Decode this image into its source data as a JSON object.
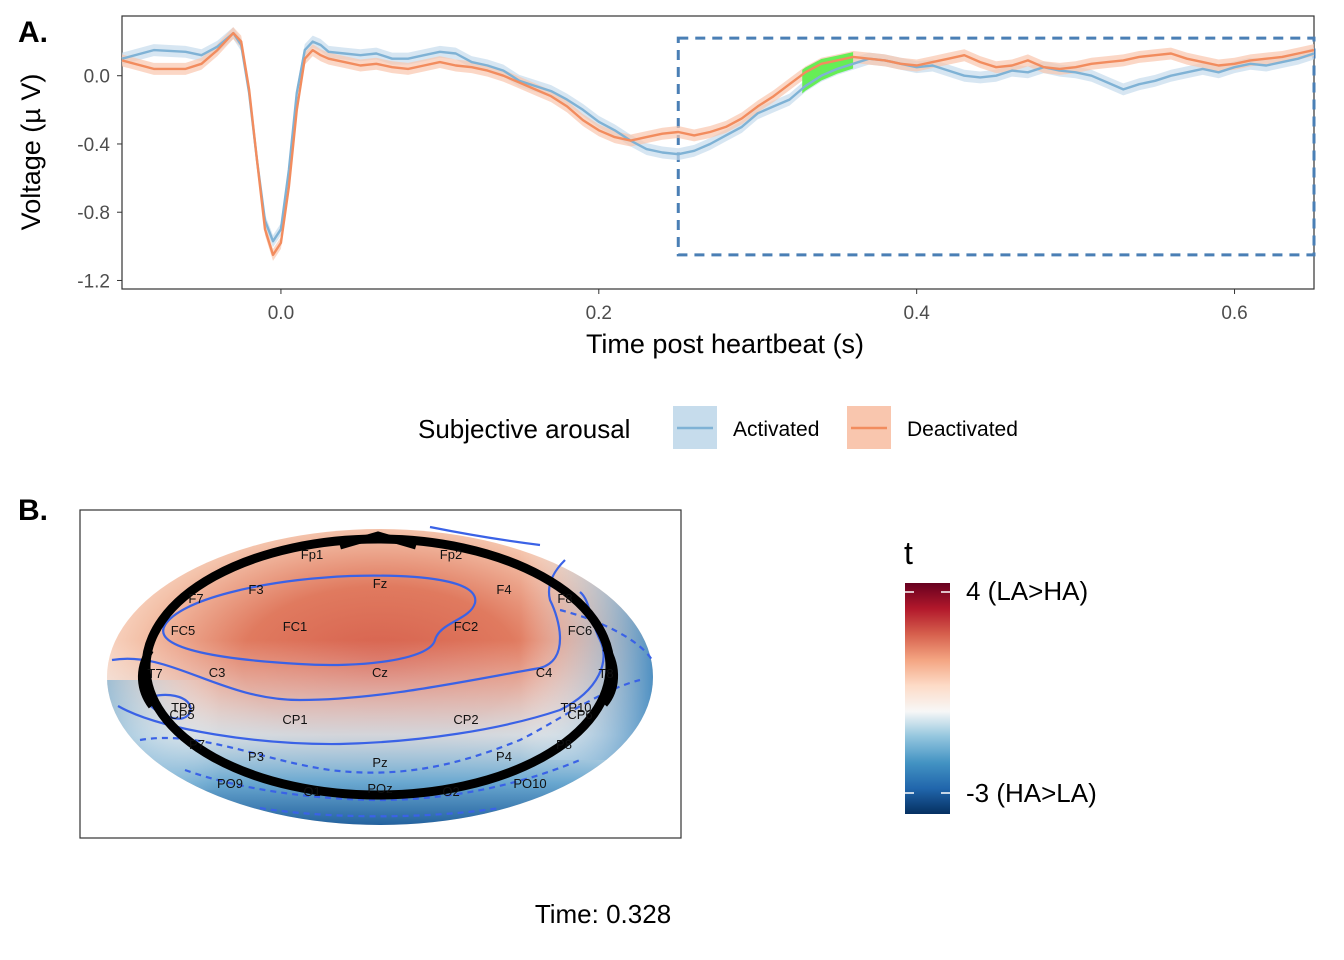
{
  "panel_a": {
    "label": "A.",
    "legend": {
      "title": "Subjective arousal",
      "items": [
        {
          "label": "Activated",
          "color": "#7fb2d5",
          "fill": "#c6dcec"
        },
        {
          "label": "Deactivated",
          "color": "#f28c5e",
          "fill": "#f9c6ae"
        }
      ]
    }
  },
  "panel_b": {
    "label": "B.",
    "colorbar": {
      "title": "t",
      "max_label": "4 (LA>HA)",
      "min_label": "-3 (HA>LA)",
      "range": [
        -3,
        4
      ],
      "colors": [
        "#053061",
        "#2166ac",
        "#4393c3",
        "#92c5de",
        "#f7f7f7",
        "#fddbc7",
        "#f4a582",
        "#d6604d",
        "#b2182b",
        "#67001f"
      ]
    },
    "electrodes": [
      "Fp1",
      "Fp2",
      "F7",
      "F3",
      "Fz",
      "F4",
      "F8",
      "FC5",
      "FC1",
      "FC2",
      "FC6",
      "T7",
      "C3",
      "Cz",
      "C4",
      "T8",
      "TP9",
      "CP5",
      "CP1",
      "CP2",
      "CP6",
      "TP10",
      "P7",
      "P3",
      "Pz",
      "P4",
      "P8",
      "PO9",
      "O1",
      "POz",
      "O2",
      "PO10"
    ],
    "time_label": "Time: 0.328"
  },
  "chart_data": [
    {
      "type": "line",
      "xlabel": "Time post heartbeat (s)",
      "ylabel": "Voltage (µ V)",
      "xlim": [
        -0.1,
        0.65
      ],
      "ylim": [
        -1.25,
        0.35
      ],
      "x_ticks": [
        0.0,
        0.2,
        0.4,
        0.6
      ],
      "x_tick_labels": [
        "0.0",
        "0.2",
        "0.4",
        "0.6"
      ],
      "y_ticks": [
        0.0,
        -0.4,
        -0.8,
        -1.2
      ],
      "y_tick_labels": [
        "0.0",
        "-0.4",
        "-0.8",
        "-1.2"
      ],
      "grid": false,
      "legend_position": "bottom",
      "x": [
        -0.1,
        -0.08,
        -0.06,
        -0.05,
        -0.04,
        -0.03,
        -0.025,
        -0.02,
        -0.015,
        -0.01,
        -0.005,
        0.0,
        0.005,
        0.01,
        0.015,
        0.02,
        0.025,
        0.03,
        0.04,
        0.05,
        0.06,
        0.07,
        0.08,
        0.09,
        0.1,
        0.11,
        0.12,
        0.13,
        0.14,
        0.15,
        0.16,
        0.17,
        0.18,
        0.19,
        0.2,
        0.21,
        0.22,
        0.23,
        0.24,
        0.25,
        0.26,
        0.27,
        0.28,
        0.29,
        0.3,
        0.31,
        0.32,
        0.33,
        0.34,
        0.35,
        0.36,
        0.37,
        0.38,
        0.39,
        0.4,
        0.41,
        0.42,
        0.43,
        0.44,
        0.45,
        0.46,
        0.47,
        0.48,
        0.49,
        0.5,
        0.51,
        0.52,
        0.53,
        0.54,
        0.55,
        0.56,
        0.57,
        0.58,
        0.59,
        0.6,
        0.61,
        0.62,
        0.63,
        0.64,
        0.65
      ],
      "series": [
        {
          "name": "Activated",
          "color": "#7fb2d5",
          "ribbon": "#c6dcec",
          "values": [
            0.1,
            0.15,
            0.14,
            0.12,
            0.17,
            0.25,
            0.18,
            -0.1,
            -0.5,
            -0.85,
            -0.97,
            -0.9,
            -0.55,
            -0.1,
            0.15,
            0.2,
            0.18,
            0.14,
            0.13,
            0.12,
            0.13,
            0.1,
            0.1,
            0.12,
            0.14,
            0.13,
            0.08,
            0.06,
            0.03,
            -0.03,
            -0.06,
            -0.09,
            -0.14,
            -0.2,
            -0.27,
            -0.32,
            -0.38,
            -0.43,
            -0.45,
            -0.46,
            -0.44,
            -0.4,
            -0.35,
            -0.3,
            -0.22,
            -0.18,
            -0.14,
            -0.06,
            0.0,
            0.04,
            0.07,
            0.1,
            0.09,
            0.07,
            0.05,
            0.06,
            0.03,
            0.0,
            -0.01,
            0.0,
            0.03,
            0.02,
            0.05,
            0.03,
            0.02,
            0.0,
            -0.04,
            -0.08,
            -0.05,
            -0.03,
            0.0,
            0.02,
            0.04,
            0.02,
            0.05,
            0.07,
            0.06,
            0.08,
            0.1,
            0.13
          ]
        },
        {
          "name": "Deactivated",
          "color": "#f28c5e",
          "ribbon": "#f9c6ae",
          "values": [
            0.09,
            0.04,
            0.04,
            0.07,
            0.15,
            0.25,
            0.2,
            -0.08,
            -0.5,
            -0.9,
            -1.05,
            -0.98,
            -0.65,
            -0.2,
            0.1,
            0.15,
            0.12,
            0.1,
            0.08,
            0.06,
            0.07,
            0.05,
            0.04,
            0.06,
            0.08,
            0.06,
            0.05,
            0.03,
            0.0,
            -0.04,
            -0.08,
            -0.12,
            -0.18,
            -0.26,
            -0.32,
            -0.36,
            -0.38,
            -0.36,
            -0.34,
            -0.33,
            -0.35,
            -0.33,
            -0.3,
            -0.25,
            -0.18,
            -0.12,
            -0.05,
            0.02,
            0.07,
            0.09,
            0.11,
            0.1,
            0.09,
            0.07,
            0.06,
            0.08,
            0.1,
            0.12,
            0.08,
            0.05,
            0.06,
            0.09,
            0.05,
            0.04,
            0.05,
            0.07,
            0.08,
            0.09,
            0.11,
            0.12,
            0.13,
            0.1,
            0.08,
            0.06,
            0.07,
            0.09,
            0.1,
            0.11,
            0.13,
            0.15
          ]
        }
      ],
      "ribbon_halfwidth": 0.035,
      "highlight": {
        "x_start": 0.328,
        "x_end": 0.36,
        "color": "#66ee55"
      },
      "window_box": {
        "x_start": 0.25,
        "x_end": 0.65,
        "y_min": -1.05,
        "y_max": 0.22,
        "color": "#4a7fb5"
      }
    },
    {
      "type": "heatmap",
      "colorbar_title": "t",
      "range": [
        -3,
        4
      ]
    }
  ]
}
